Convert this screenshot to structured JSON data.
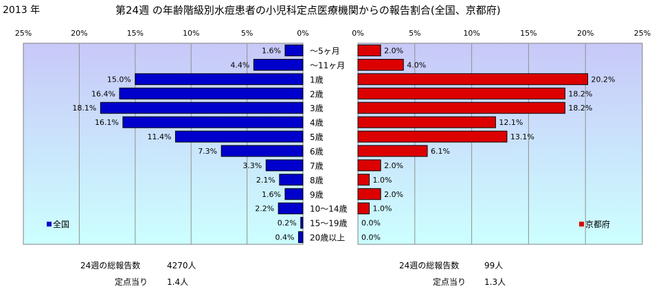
{
  "header": {
    "year": "2013 年",
    "title": "第24週 の年齢階級別水痘患者の小児科定点医療機関からの報告割合(全国、京都府)"
  },
  "colors": {
    "left_bar": "#0000cc",
    "right_bar": "#dd0000",
    "plot_bg_top": "#c8c8f8",
    "plot_bg_bottom": "#ccffff"
  },
  "summary": {
    "left": {
      "total_label": "24週の総報告数",
      "total_value": "4270人",
      "per_label": "定点当り",
      "per_value": "1.4人"
    },
    "right": {
      "total_label": "24週の総報告数",
      "total_value": "99人",
      "per_label": "定点当り",
      "per_value": "1.3人"
    }
  },
  "chart_data": [
    {
      "type": "bar",
      "orientation": "horizontal",
      "direction": "leftward",
      "series": [
        {
          "name": "全国",
          "values": [
            1.6,
            4.4,
            15.0,
            16.4,
            18.1,
            16.1,
            11.4,
            7.3,
            3.3,
            2.1,
            1.6,
            2.2,
            0.2,
            0.4
          ]
        }
      ],
      "value_labels": [
        "1.6%",
        "4.4%",
        "15.0%",
        "16.4%",
        "18.1%",
        "16.1%",
        "11.4%",
        "7.3%",
        "3.3%",
        "2.1%",
        "1.6%",
        "2.2%",
        "0.2%",
        "0.4%"
      ],
      "xlim": [
        0,
        25
      ],
      "ticks": [
        "25%",
        "20%",
        "15%",
        "10%",
        "5%",
        "0%"
      ],
      "grid": true,
      "legend_position": "bottom-left"
    },
    {
      "type": "bar",
      "orientation": "horizontal",
      "direction": "rightward",
      "series": [
        {
          "name": "京都府",
          "values": [
            2.0,
            4.0,
            20.2,
            18.2,
            18.2,
            12.1,
            13.1,
            6.1,
            2.0,
            1.0,
            2.0,
            1.0,
            0.0,
            0.0
          ]
        }
      ],
      "value_labels": [
        "2.0%",
        "4.0%",
        "20.2%",
        "18.2%",
        "18.2%",
        "12.1%",
        "13.1%",
        "6.1%",
        "2.0%",
        "1.0%",
        "2.0%",
        "1.0%",
        "0.0%",
        "0.0%"
      ],
      "xlim": [
        0,
        25
      ],
      "ticks": [
        "0%",
        "5%",
        "10%",
        "15%",
        "20%",
        "25%"
      ],
      "grid": true,
      "legend_position": "bottom-right"
    }
  ],
  "categories": [
    "〜5ヶ月",
    "〜11ヶ月",
    "1歳",
    "2歳",
    "3歳",
    "4歳",
    "5歳",
    "6歳",
    "7歳",
    "8歳",
    "9歳",
    "10〜14歳",
    "15〜19歳",
    "20歳以上"
  ]
}
